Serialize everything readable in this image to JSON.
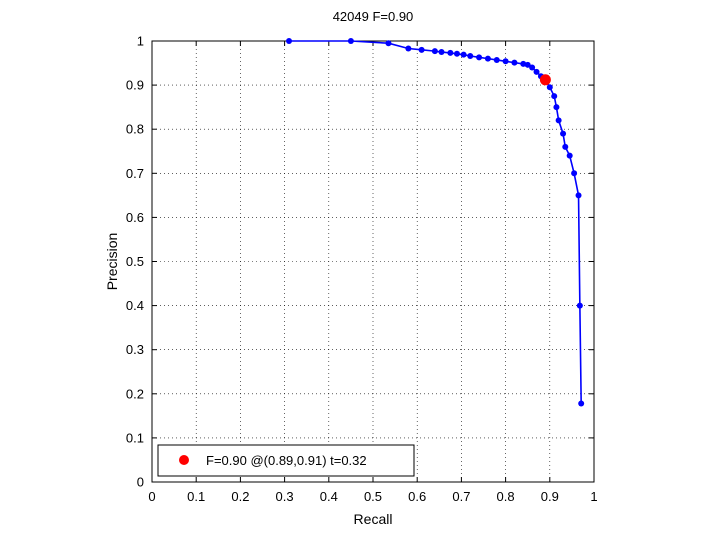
{
  "chart_data": {
    "type": "line",
    "title": "42049 F=0.90",
    "xlabel": "Recall",
    "ylabel": "Precision",
    "xlim": [
      0,
      1
    ],
    "ylim": [
      0,
      1
    ],
    "grid": true,
    "xticks": [
      "0",
      "0.1",
      "0.2",
      "0.3",
      "0.4",
      "0.5",
      "0.6",
      "0.7",
      "0.8",
      "0.9",
      "1"
    ],
    "yticks": [
      "0",
      "0.1",
      "0.2",
      "0.3",
      "0.4",
      "0.5",
      "0.6",
      "0.7",
      "0.8",
      "0.9",
      "1"
    ],
    "series": [
      {
        "color": "#0000ff",
        "x": [
          0.31,
          0.45,
          0.535,
          0.58,
          0.61,
          0.64,
          0.655,
          0.675,
          0.69,
          0.705,
          0.72,
          0.74,
          0.76,
          0.78,
          0.8,
          0.82,
          0.84,
          0.85,
          0.86,
          0.87,
          0.88,
          0.89,
          0.9,
          0.91,
          0.915,
          0.92,
          0.93,
          0.935,
          0.945,
          0.955,
          0.965,
          0.968,
          0.971
        ],
        "y": [
          1.0,
          1.0,
          0.995,
          0.983,
          0.98,
          0.977,
          0.975,
          0.973,
          0.971,
          0.969,
          0.966,
          0.963,
          0.96,
          0.957,
          0.954,
          0.951,
          0.948,
          0.946,
          0.94,
          0.93,
          0.92,
          0.912,
          0.895,
          0.875,
          0.85,
          0.82,
          0.79,
          0.76,
          0.74,
          0.7,
          0.65,
          0.4,
          0.178
        ]
      }
    ],
    "best_point": {
      "x": 0.89,
      "y": 0.912,
      "color": "#ff0000"
    },
    "legend": {
      "location": "bottom-left",
      "label": "F=0.90 @(0.89,0.91) t=0.32"
    }
  }
}
